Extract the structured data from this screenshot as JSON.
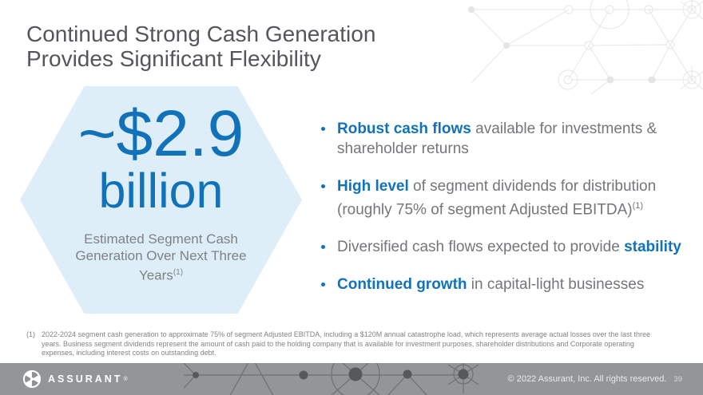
{
  "colors": {
    "accent_blue": "#1272b9",
    "hexagon_fill": "#ddeef8",
    "title_gray": "#54565b",
    "body_gray": "#75767a",
    "caption_gray": "#7f8184",
    "footnote_gray": "#808285",
    "footer_bg": "#939598",
    "pattern_light": "#e9eaec",
    "footer_pattern_line": "#707275",
    "footer_pattern_dot": "#56585b"
  },
  "title": {
    "line1": "Continued Strong Cash Generation",
    "line2": "Provides Significant Flexibility"
  },
  "hexagon": {
    "amount": "~$2.9",
    "unit": "billion",
    "caption": "Estimated Segment Cash Generation Over Next Three Years",
    "caption_note_marker": "(1)"
  },
  "bullets": [
    {
      "segments": [
        {
          "text": "Robust cash flows",
          "bold": true
        },
        {
          "text": " available for investments & shareholder returns"
        }
      ]
    },
    {
      "segments": [
        {
          "text": "High level",
          "bold": true
        },
        {
          "text": " of segment dividends for distribution (roughly 75% of segment Adjusted EBITDA)"
        },
        {
          "text": "(1)",
          "sup": true
        }
      ]
    },
    {
      "segments": [
        {
          "text": "Diversified cash flows expected to provide "
        },
        {
          "text": "stability",
          "bold": true
        }
      ]
    },
    {
      "segments": [
        {
          "text": "Continued growth",
          "bold": true
        },
        {
          "text": " in capital-light businesses"
        }
      ]
    }
  ],
  "footnote": {
    "marker": "(1)",
    "text": "2022-2024 segment cash generation to approximate 75% of segment Adjusted EBITDA, including a $120M annual catastrophe load, which represents average actual losses over the last three years. Business segment dividends represent the amount of cash paid to the holding company that is available for investment purposes, shareholder distributions and Corporate operating expenses, including interest costs on outstanding debt."
  },
  "footer": {
    "brand": "ASSURANT",
    "registered_mark": "®",
    "copyright": "© 2022 Assurant, Inc. All rights reserved.",
    "page_number": "39"
  },
  "icons": {
    "logo": "assurant-logo",
    "top_right": "network-pattern",
    "footer_right": "network-pattern"
  }
}
